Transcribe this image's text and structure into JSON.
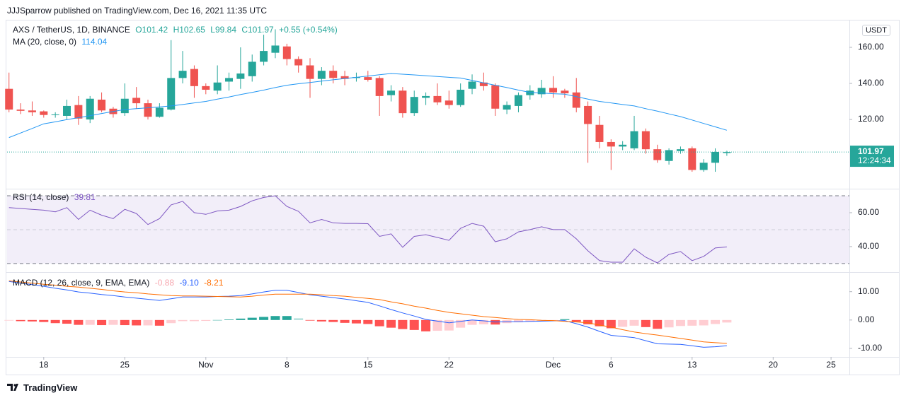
{
  "header": {
    "published": "JJJSparrow published on TradingView.com, Dec 16, 2021 11:35 UTC",
    "currency": "USDT",
    "brand": "TradingView"
  },
  "chart_data": [
    {
      "type": "candlestick",
      "title": "AXS / TetherUS, 1D, BINANCE",
      "ohlc_text": [
        "O101.42",
        "H102.65",
        "L99.84",
        "C101.97",
        "+0.55 (+0.54%)"
      ],
      "last_price_label": "101.97",
      "countdown": "12:24:34",
      "up_color": "#26a69a",
      "down_color": "#ef5350",
      "x": [
        "2021-10-15",
        "2021-10-16",
        "2021-10-17",
        "2021-10-18",
        "2021-10-19",
        "2021-10-20",
        "2021-10-21",
        "2021-10-22",
        "2021-10-23",
        "2021-10-24",
        "2021-10-25",
        "2021-10-26",
        "2021-10-27",
        "2021-10-28",
        "2021-10-29",
        "2021-10-30",
        "2021-10-31",
        "2021-11-01",
        "2021-11-02",
        "2021-11-03",
        "2021-11-04",
        "2021-11-05",
        "2021-11-06",
        "2021-11-07",
        "2021-11-08",
        "2021-11-09",
        "2021-11-10",
        "2021-11-11",
        "2021-11-12",
        "2021-11-13",
        "2021-11-14",
        "2021-11-15",
        "2021-11-16",
        "2021-11-17",
        "2021-11-18",
        "2021-11-19",
        "2021-11-20",
        "2021-11-21",
        "2021-11-22",
        "2021-11-23",
        "2021-11-24",
        "2021-11-25",
        "2021-11-26",
        "2021-11-27",
        "2021-11-28",
        "2021-11-29",
        "2021-11-30",
        "2021-12-01",
        "2021-12-02",
        "2021-12-03",
        "2021-12-04",
        "2021-12-05",
        "2021-12-06",
        "2021-12-07",
        "2021-12-08",
        "2021-12-09",
        "2021-12-10",
        "2021-12-11",
        "2021-12-12",
        "2021-12-13",
        "2021-12-14",
        "2021-12-15",
        "2021-12-16"
      ],
      "open": [
        137,
        125.5,
        125,
        124.5,
        122.5,
        122,
        128,
        120,
        131,
        126,
        123.5,
        132,
        129,
        121.5,
        125.5,
        143,
        148,
        138.5,
        136,
        141,
        142.5,
        144,
        152,
        157,
        160.5,
        153.5,
        150,
        142.5,
        147,
        144,
        143,
        143.5,
        143,
        133.5,
        136,
        123.5,
        132,
        133,
        130.5,
        128,
        137,
        140.5,
        139,
        125.5,
        127.5,
        133.5,
        134,
        137.5,
        136,
        135,
        127.5,
        117,
        107.5,
        105,
        104,
        113.5,
        103.5,
        97,
        102.5,
        104,
        92,
        96,
        101.42
      ],
      "high": [
        146,
        129,
        130,
        125,
        124,
        131,
        133,
        133,
        135,
        127,
        140,
        138,
        131,
        129,
        164,
        158,
        150,
        140,
        150,
        146,
        160,
        156,
        167,
        170,
        162,
        155,
        154,
        149,
        150,
        147,
        146,
        147,
        144,
        139,
        138,
        136,
        135,
        140,
        136,
        140,
        145,
        146,
        140,
        130,
        135,
        139,
        142,
        144,
        137,
        143,
        130,
        122,
        109,
        108,
        122,
        115,
        106,
        104,
        105,
        105,
        98,
        104,
        102.65
      ],
      "low": [
        124,
        123,
        122,
        121,
        121,
        120,
        117,
        118,
        124,
        121,
        122,
        126,
        120,
        121,
        125,
        140,
        132,
        134,
        134,
        136,
        137,
        141,
        150,
        154,
        150,
        146,
        132,
        139,
        140,
        139,
        141,
        141,
        122,
        130,
        121,
        122,
        128,
        128,
        126,
        127,
        134,
        136,
        122,
        123,
        124,
        131,
        132,
        132,
        132,
        124,
        96,
        104,
        92,
        103,
        103,
        101,
        96,
        95,
        101,
        91,
        91,
        91,
        99.84
      ],
      "close": [
        125.5,
        124.8,
        124,
        122.5,
        122.8,
        127.5,
        120.5,
        131.5,
        125,
        123,
        131.5,
        129,
        121.5,
        126.5,
        143,
        147,
        138.5,
        136.5,
        140.5,
        143,
        145.5,
        152,
        158,
        161,
        153.5,
        150,
        142.5,
        147,
        143,
        142.5,
        143.5,
        142,
        133,
        136,
        123.5,
        132.5,
        133,
        129.5,
        128,
        136.5,
        141,
        138.5,
        126,
        128,
        133.5,
        136,
        137.5,
        135,
        134.5,
        126.5,
        117.5,
        107.5,
        105,
        106,
        113.5,
        103.5,
        97.5,
        103,
        103.5,
        92,
        96,
        102,
        101.97
      ],
      "series": [
        {
          "name": "MA (20, close, 0)",
          "last_label": "114.04",
          "color": "#2196f3",
          "values": [
            110,
            112.5,
            115,
            117.6,
            118.7,
            119.9,
            121,
            122.1,
            123.3,
            124.4,
            125.5,
            126,
            126.5,
            127,
            127.5,
            128.3,
            129.2,
            130,
            131.3,
            132.5,
            133.8,
            135,
            136.3,
            137.7,
            139,
            139.8,
            140.5,
            141.3,
            142,
            142.7,
            143.4,
            144.1,
            144.8,
            145.5,
            145.1,
            144.7,
            144.3,
            143.8,
            143.4,
            143,
            141.7,
            140.3,
            139,
            137.7,
            136.3,
            135,
            134.7,
            134.3,
            134,
            132.7,
            131.3,
            130,
            129.2,
            128.3,
            127.5,
            126,
            124.6,
            123.1,
            121.6,
            119.7,
            117.8,
            115.9,
            114.04
          ]
        }
      ],
      "xlim": [
        "2021-10-14T20:00Z",
        "2021-12-26T14:00Z"
      ],
      "xticks": [
        {
          "value": "2021-10-18",
          "label": "18"
        },
        {
          "value": "2021-10-25",
          "label": "25"
        },
        {
          "value": "2021-11-01",
          "label": "Nov"
        },
        {
          "value": "2021-11-08",
          "label": "8"
        },
        {
          "value": "2021-11-15",
          "label": "15"
        },
        {
          "value": "2021-11-22",
          "label": "22"
        },
        {
          "value": "2021-12-01",
          "label": "Dec"
        },
        {
          "value": "2021-12-06",
          "label": "6"
        },
        {
          "value": "2021-12-13",
          "label": "13"
        },
        {
          "value": "2021-12-20",
          "label": "20"
        },
        {
          "value": "2021-12-25",
          "label": "25"
        }
      ],
      "ylim": [
        82.4,
        174.5
      ],
      "yticks": [
        {
          "value": 120,
          "label": "120.00"
        },
        {
          "value": 140,
          "label": "140.00"
        },
        {
          "value": 160,
          "label": "160.00"
        }
      ]
    },
    {
      "type": "line",
      "series": [
        {
          "name": "RSI (14, close)",
          "last_label": "39.81",
          "color": "#7e57c2",
          "values": [
            63,
            62.5,
            62,
            61.5,
            60.5,
            63,
            56,
            61.5,
            58.5,
            56.5,
            62,
            59.5,
            53,
            56.5,
            64.6,
            66.7,
            60,
            59,
            61,
            61.5,
            63.7,
            67,
            69,
            70,
            63.7,
            60.8,
            54,
            56,
            54,
            53.7,
            53.7,
            53.5,
            46,
            47.5,
            39.6,
            46,
            47,
            45.4,
            43.7,
            50.8,
            53.7,
            52,
            42.9,
            44.6,
            48.7,
            50,
            51.7,
            50,
            50,
            44.6,
            37.5,
            31.7,
            30.8,
            30.8,
            38.7,
            33.7,
            30.4,
            35.4,
            37.1,
            31.7,
            34.2,
            39.2,
            39.81
          ]
        }
      ],
      "band": [
        30,
        70
      ],
      "band_color": "#7e57c2",
      "midline": 50,
      "ylim": [
        25.8,
        72.9
      ],
      "yticks": [
        {
          "value": 40,
          "label": "40.00"
        },
        {
          "value": 60,
          "label": "60.00"
        }
      ]
    },
    {
      "type": "macd",
      "title": "MACD (12, 26, close, 9, EMA, EMA)",
      "series": [
        {
          "last_label": "-0.88",
          "colors": {
            "rise_above": "#26a69a",
            "fall_above": "#b2dfdb",
            "rise_below": "#ffcdd2",
            "fall_below": "#ff5252"
          },
          "values": [
            -0.2,
            -0.4,
            -0.5,
            -0.7,
            -1.1,
            -1.3,
            -1.7,
            -1.7,
            -1.8,
            -1.7,
            -1.8,
            -1.9,
            -1.9,
            -2,
            -1.1,
            -0.4,
            -0.4,
            -0.3,
            0,
            0.2,
            0.5,
            0.8,
            1.1,
            1.4,
            1.4,
            0.6,
            -0.2,
            -0.5,
            -0.7,
            -1,
            -1.2,
            -1.4,
            -2.2,
            -2.7,
            -3.2,
            -3.5,
            -4,
            -3.8,
            -3.7,
            -2.7,
            -1.7,
            -1.5,
            -1.6,
            -1.1,
            -0.8,
            -0.6,
            -0.3,
            -0.1,
            0.3,
            -0.6,
            -1.5,
            -2.2,
            -2.9,
            -2.4,
            -2,
            -2.5,
            -3.1,
            -2.6,
            -2.1,
            -2,
            -1.9,
            -1.4,
            -0.88
          ]
        },
        {
          "last_label": "-9.10",
          "color": "#2962ff",
          "values": [
            13.6,
            13,
            12.5,
            11.9,
            11.2,
            10.6,
            9.9,
            9.5,
            9,
            8.6,
            8.1,
            7.7,
            7.3,
            6.9,
            7.5,
            8.1,
            8.1,
            8.1,
            8.3,
            8.4,
            8.6,
            9.2,
            9.9,
            10.5,
            10.5,
            9.7,
            8.9,
            8.4,
            7.9,
            7.4,
            6.8,
            6.2,
            5,
            3.7,
            2.5,
            1.4,
            0.2,
            -0.4,
            -1,
            -0.5,
            0,
            -0.3,
            -0.7,
            -0.6,
            -0.6,
            -0.5,
            -0.4,
            -0.3,
            -0.2,
            -1.3,
            -2.5,
            -4,
            -5.4,
            -5.8,
            -6.2,
            -7.3,
            -8.4,
            -8.5,
            -8.6,
            -9.1,
            -9.6,
            -9.4,
            -9.1
          ]
        },
        {
          "last_label": "-8.21",
          "color": "#ff6d00",
          "values": [
            13.8,
            13.4,
            13,
            12.6,
            12.3,
            11.9,
            11.6,
            11.2,
            10.8,
            10.3,
            9.9,
            9.6,
            9.2,
            8.9,
            8.6,
            8.5,
            8.5,
            8.4,
            8.3,
            8.2,
            8.1,
            8.4,
            8.8,
            9.1,
            9.1,
            9.1,
            9.1,
            8.9,
            8.6,
            8.4,
            8,
            7.6,
            7.2,
            6.4,
            5.7,
            4.9,
            4.2,
            3.4,
            2.7,
            2.2,
            1.7,
            1.2,
            0.9,
            0.5,
            0.2,
            0.1,
            -0.1,
            -0.2,
            -0.5,
            -0.7,
            -1,
            -1.8,
            -2.5,
            -3.4,
            -4.2,
            -4.8,
            -5.3,
            -5.9,
            -6.5,
            -7.1,
            -7.7,
            -8,
            -8.21
          ]
        }
      ],
      "ylim": [
        -13,
        16.4
      ],
      "yticks": [
        {
          "value": -10,
          "label": "-10.00"
        },
        {
          "value": 0,
          "label": "0.00"
        },
        {
          "value": 10,
          "label": "10.00"
        }
      ]
    }
  ]
}
